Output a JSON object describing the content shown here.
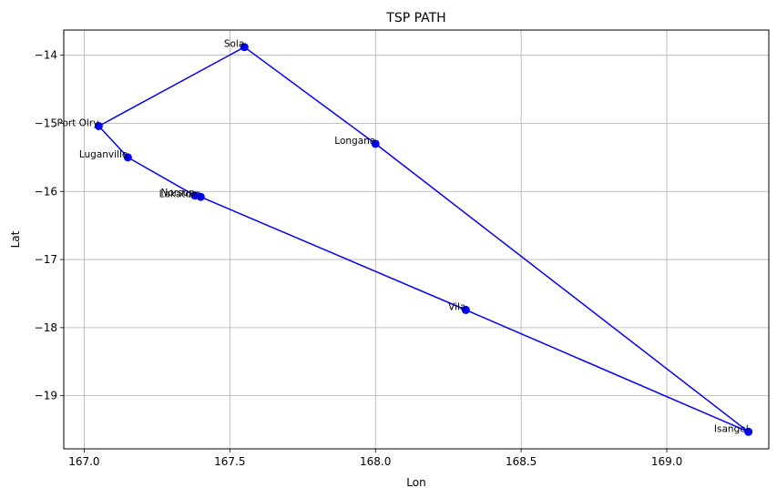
{
  "chart_data": {
    "type": "line",
    "title": "TSP PATH",
    "xlabel": "Lon",
    "ylabel": "Lat",
    "xlim": [
      166.93,
      169.35
    ],
    "ylim": [
      -19.78,
      -13.63
    ],
    "xticks": [
      167.0,
      167.5,
      168.0,
      168.5,
      169.0
    ],
    "xtick_labels": [
      "167.0",
      "167.5",
      "168.0",
      "168.5",
      "169.0"
    ],
    "yticks": [
      -14,
      -15,
      -16,
      -17,
      -18,
      -19
    ],
    "ytick_labels": [
      "−14",
      "−15",
      "−16",
      "−17",
      "−18",
      "−19"
    ],
    "grid": true,
    "line_color": "#0000ff",
    "marker_color": "#0000ff",
    "points": [
      {
        "name": "Sola",
        "x": 167.55,
        "y": -13.88
      },
      {
        "name": "Longana",
        "x": 168.0,
        "y": -15.3
      },
      {
        "name": "Isangel",
        "x": 169.28,
        "y": -19.53
      },
      {
        "name": "Vila",
        "x": 168.31,
        "y": -17.74
      },
      {
        "name": "Norsup",
        "x": 167.38,
        "y": -16.06
      },
      {
        "name": "Lakatoro",
        "x": 167.4,
        "y": -16.08
      },
      {
        "name": "Luganville",
        "x": 167.15,
        "y": -15.5
      },
      {
        "name": "Port Olry",
        "x": 167.05,
        "y": -15.04
      }
    ],
    "path_order": [
      0,
      1,
      2,
      3,
      5,
      4,
      6,
      7,
      0
    ]
  }
}
